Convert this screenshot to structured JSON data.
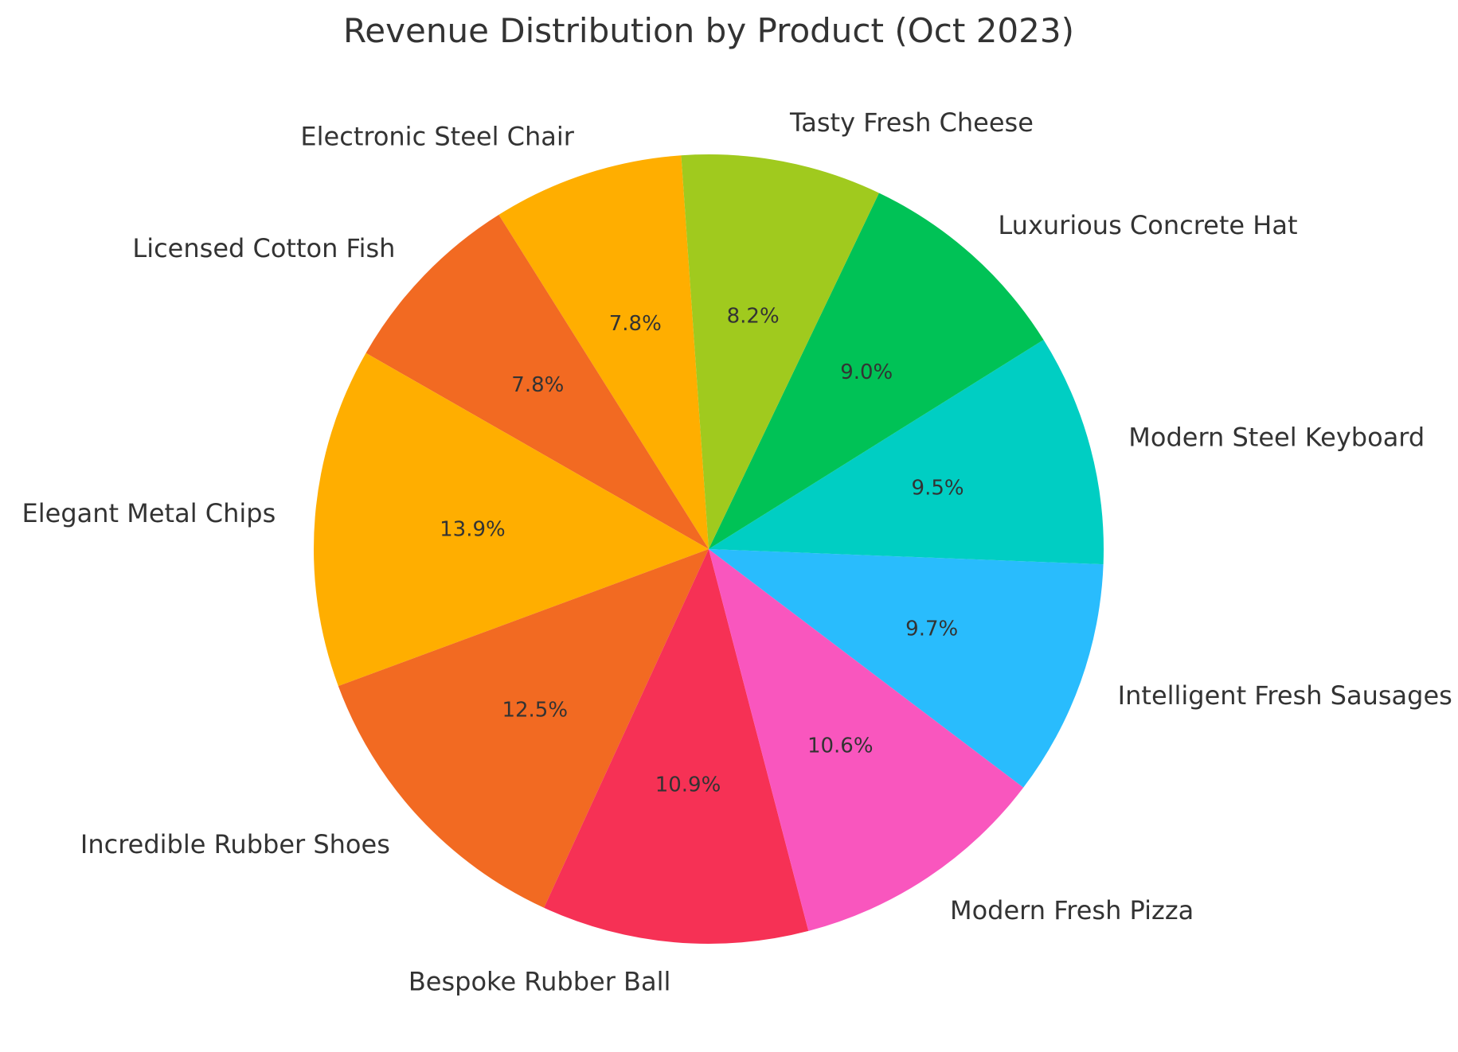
{
  "chart_data": {
    "type": "pie",
    "title": "Revenue Distribution by Product (Oct 2023)",
    "start_angle_deg": 94,
    "direction": "counterclockwise",
    "slices": [
      {
        "label": "Electronic Steel Chair",
        "value": 7.8,
        "pct_label": "7.8%",
        "color": "#FFAE00"
      },
      {
        "label": "Licensed Cotton Fish",
        "value": 7.8,
        "pct_label": "7.8%",
        "color": "#F26A22"
      },
      {
        "label": "Elegant Metal Chips",
        "value": 13.9,
        "pct_label": "13.9%",
        "color": "#FFAE00"
      },
      {
        "label": "Incredible Rubber Shoes",
        "value": 12.5,
        "pct_label": "12.5%",
        "color": "#F26A22"
      },
      {
        "label": "Bespoke Rubber Ball",
        "value": 10.9,
        "pct_label": "10.9%",
        "color": "#F63155"
      },
      {
        "label": "Modern Fresh Pizza",
        "value": 10.6,
        "pct_label": "10.6%",
        "color": "#F956BE"
      },
      {
        "label": "Intelligent Fresh Sausages",
        "value": 9.7,
        "pct_label": "9.7%",
        "color": "#29BCFD"
      },
      {
        "label": "Modern Steel Keyboard",
        "value": 9.5,
        "pct_label": "9.5%",
        "color": "#00CEC3"
      },
      {
        "label": "Luxurious Concrete Hat",
        "value": 9.0,
        "pct_label": "9.0%",
        "color": "#00C256"
      },
      {
        "label": "Tasty Fresh Cheese",
        "value": 8.2,
        "pct_label": "8.2%",
        "color": "#A0CA1E"
      }
    ]
  }
}
